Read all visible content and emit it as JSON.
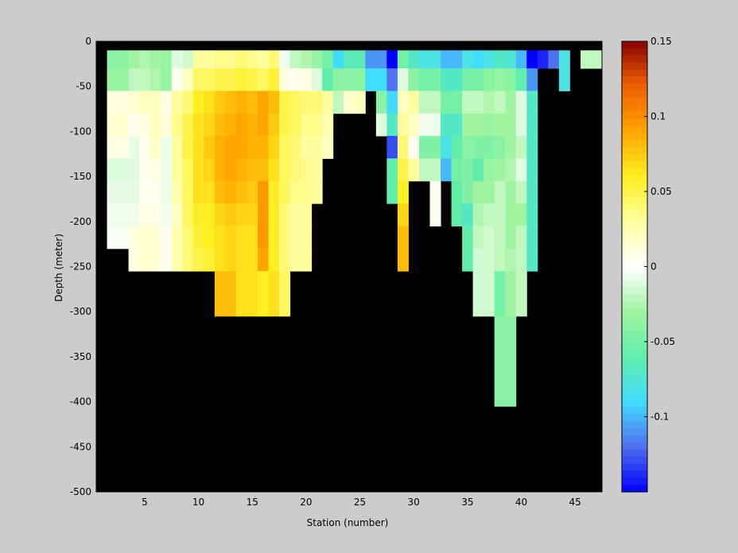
{
  "chart_data": {
    "type": "heatmap",
    "title": "",
    "xlabel": "Station (number)",
    "ylabel": "Depth (meter)",
    "xlim": [
      1,
      47
    ],
    "ylim": [
      -500,
      0
    ],
    "x_ticks": [
      5,
      10,
      15,
      20,
      25,
      30,
      35,
      40,
      45
    ],
    "y_ticks": [
      0,
      -50,
      -100,
      -150,
      -200,
      -250,
      -300,
      -350,
      -400,
      -450,
      -500
    ],
    "colorbar": {
      "range": [
        -0.15,
        0.15
      ],
      "ticks": [
        0.15,
        0.1,
        0.05,
        0,
        -0.05,
        -0.1
      ]
    },
    "background_color": "#000000",
    "colormap": [
      "#0000ff",
      "#5070ee",
      "#40ddff",
      "#60eeaa",
      "#a0f4a0",
      "#ffffff",
      "#ffffa0",
      "#ffee20",
      "#ffa500",
      "#ee6000",
      "#880000"
    ],
    "cell_depth_bins": 10,
    "cell_depth_bin_size": 50,
    "stations": [
      {
        "station": 2,
        "values": [
          -0.04,
          -0.035,
          0.01,
          0.015,
          0.008,
          -0.012,
          -0.008,
          -0.005,
          -0.003
        ]
      },
      {
        "station": 3,
        "values": [
          -0.04,
          -0.035,
          0.01,
          0.015,
          0.008,
          -0.012,
          -0.008,
          -0.005,
          -0.003
        ]
      },
      {
        "station": 4,
        "values": [
          -0.03,
          -0.02,
          0.015,
          0.006,
          -0.008,
          -0.01,
          -0.008,
          -0.005,
          0.01,
          0.01
        ]
      },
      {
        "station": 5,
        "values": [
          -0.025,
          -0.02,
          0.02,
          0.01,
          0.005,
          0.005,
          0.005,
          0.008,
          0.015,
          0.015
        ]
      },
      {
        "station": 6,
        "values": [
          -0.03,
          -0.025,
          0.02,
          0.02,
          0.018,
          0.01,
          0.005,
          0.008,
          0.012,
          0.012
        ]
      },
      {
        "station": 7,
        "values": [
          -0.035,
          -0.035,
          0.008,
          0.012,
          -0.006,
          -0.006,
          -0.006,
          -0.004,
          0.005,
          0.005
        ]
      },
      {
        "station": 8,
        "values": [
          -0.01,
          0.005,
          0.03,
          0.035,
          0.03,
          0.03,
          0.025,
          0.02,
          0.025,
          0.025
        ]
      },
      {
        "station": 9,
        "values": [
          -0.015,
          0.02,
          0.04,
          0.05,
          0.05,
          0.045,
          0.045,
          0.045,
          0.04,
          0.04
        ]
      },
      {
        "station": 10,
        "values": [
          0.03,
          0.045,
          0.06,
          0.065,
          0.065,
          0.065,
          0.065,
          0.06,
          0.055,
          0.05
        ]
      },
      {
        "station": 11,
        "values": [
          0.03,
          0.045,
          0.065,
          0.07,
          0.075,
          0.07,
          0.065,
          0.06,
          0.06,
          0.055
        ]
      },
      {
        "station": 12,
        "values": [
          0.035,
          0.05,
          0.075,
          0.08,
          0.085,
          0.085,
          0.08,
          0.07,
          0.065,
          0.065,
          0.08,
          0.08
        ]
      },
      {
        "station": 13,
        "values": [
          0.035,
          0.05,
          0.08,
          0.085,
          0.09,
          0.09,
          0.085,
          0.075,
          0.07,
          0.07,
          0.08,
          0.08
        ]
      },
      {
        "station": 14,
        "values": [
          0.04,
          0.055,
          0.085,
          0.09,
          0.09,
          0.085,
          0.08,
          0.07,
          0.065,
          0.065,
          0.065,
          0.065
        ]
      },
      {
        "station": 15,
        "values": [
          0.035,
          0.05,
          0.08,
          0.085,
          0.085,
          0.08,
          0.075,
          0.07,
          0.065,
          0.065,
          0.065,
          0.065
        ]
      },
      {
        "station": 16,
        "values": [
          0.03,
          0.045,
          0.09,
          0.09,
          0.085,
          0.08,
          0.095,
          0.095,
          0.095,
          0.09,
          0.06,
          0.06
        ]
      },
      {
        "station": 17,
        "values": [
          0.04,
          0.055,
          0.08,
          0.075,
          0.07,
          0.065,
          0.06,
          0.06,
          0.06,
          0.06,
          0.065,
          0.065
        ]
      },
      {
        "station": 18,
        "values": [
          -0.005,
          0.01,
          0.05,
          0.05,
          0.045,
          0.045,
          0.045,
          0.04,
          0.04,
          0.04,
          0.045,
          0.045
        ]
      },
      {
        "station": 19,
        "values": [
          -0.02,
          0.005,
          0.045,
          0.045,
          0.04,
          0.04,
          0.035,
          0.03,
          0.03,
          0.03
        ]
      },
      {
        "station": 20,
        "values": [
          -0.025,
          0.01,
          0.04,
          0.035,
          0.03,
          0.035,
          0.035,
          0.03,
          0.03,
          0.03
        ]
      },
      {
        "station": 21,
        "values": [
          -0.035,
          -0.01,
          0.04,
          0.035,
          0.03,
          0.03,
          0.03
        ]
      },
      {
        "station": 22,
        "values": [
          -0.05,
          -0.06,
          0.03,
          0.025,
          0.02
        ]
      },
      {
        "station": 23,
        "values": [
          -0.09,
          -0.04,
          -0.02
        ]
      },
      {
        "station": 24,
        "values": [
          -0.065,
          -0.04,
          0.015
        ]
      },
      {
        "station": 25,
        "values": [
          -0.065,
          -0.04,
          0.02
        ]
      },
      {
        "station": 26,
        "values": [
          -0.11,
          -0.09
        ]
      },
      {
        "station": 27,
        "values": [
          -0.11,
          -0.09,
          -0.04,
          -0.01
        ]
      },
      {
        "station": 28,
        "values": [
          -0.15,
          -0.12,
          -0.09,
          -0.07,
          -0.13,
          -0.06,
          -0.06
        ]
      },
      {
        "station": 29,
        "values": [
          -0.05,
          -0.01,
          0.02,
          0.03,
          0.04,
          0.05,
          0.06,
          0.07,
          0.08,
          0.08
        ]
      },
      {
        "station": 30,
        "values": [
          -0.07,
          -0.04,
          0.03,
          0.02,
          0.005,
          0.03
        ]
      },
      {
        "station": 31,
        "values": [
          -0.08,
          -0.05,
          -0.02,
          -0.005,
          -0.045,
          -0.02
        ]
      },
      {
        "station": 32,
        "values": [
          -0.08,
          -0.05,
          -0.02,
          -0.005,
          -0.045,
          -0.02,
          0.005,
          0.005
        ]
      },
      {
        "station": 33,
        "values": [
          -0.1,
          -0.07,
          -0.05,
          -0.07,
          -0.08,
          -0.1
        ]
      },
      {
        "station": 34,
        "values": [
          -0.1,
          -0.07,
          -0.05,
          -0.07,
          -0.06,
          -0.05,
          -0.06,
          -0.06
        ]
      },
      {
        "station": 35,
        "values": [
          -0.08,
          -0.05,
          -0.02,
          -0.03,
          -0.04,
          -0.045,
          -0.045,
          -0.07,
          -0.06,
          -0.06
        ]
      },
      {
        "station": 36,
        "values": [
          -0.09,
          -0.05,
          -0.02,
          -0.03,
          -0.045,
          -0.06,
          -0.03,
          -0.025,
          -0.02,
          -0.015,
          -0.015,
          -0.015
        ]
      },
      {
        "station": 37,
        "values": [
          -0.08,
          -0.04,
          -0.025,
          -0.035,
          -0.045,
          -0.035,
          -0.03,
          -0.02,
          -0.015,
          -0.015,
          -0.015,
          -0.015
        ]
      },
      {
        "station": 38,
        "values": [
          -0.07,
          -0.035,
          -0.02,
          -0.03,
          -0.04,
          -0.03,
          -0.02,
          -0.02,
          -0.02,
          -0.02,
          -0.05,
          -0.05,
          -0.04,
          -0.04,
          -0.04,
          -0.04
        ]
      },
      {
        "station": 39,
        "values": [
          -0.075,
          -0.04,
          -0.03,
          -0.03,
          -0.03,
          -0.025,
          -0.03,
          -0.03,
          -0.03,
          -0.025,
          -0.03,
          -0.03,
          -0.04,
          -0.04,
          -0.04,
          -0.04
        ]
      },
      {
        "station": 40,
        "values": [
          -0.1,
          -0.06,
          -0.01,
          -0.01,
          -0.02,
          -0.01,
          -0.02,
          -0.03,
          -0.02,
          -0.02,
          -0.02,
          -0.02
        ]
      },
      {
        "station": 41,
        "values": [
          -0.15,
          -0.11,
          -0.07,
          -0.07,
          -0.07,
          -0.07,
          -0.07,
          -0.07,
          -0.07,
          -0.07
        ]
      },
      {
        "station": 42,
        "values": [
          -0.14
        ]
      },
      {
        "station": 43,
        "values": [
          -0.12
        ]
      },
      {
        "station": 44,
        "values": [
          -0.08,
          -0.08
        ]
      },
      {
        "station": 46,
        "values": [
          -0.02
        ]
      },
      {
        "station": 47,
        "values": [
          -0.02
        ]
      }
    ]
  }
}
